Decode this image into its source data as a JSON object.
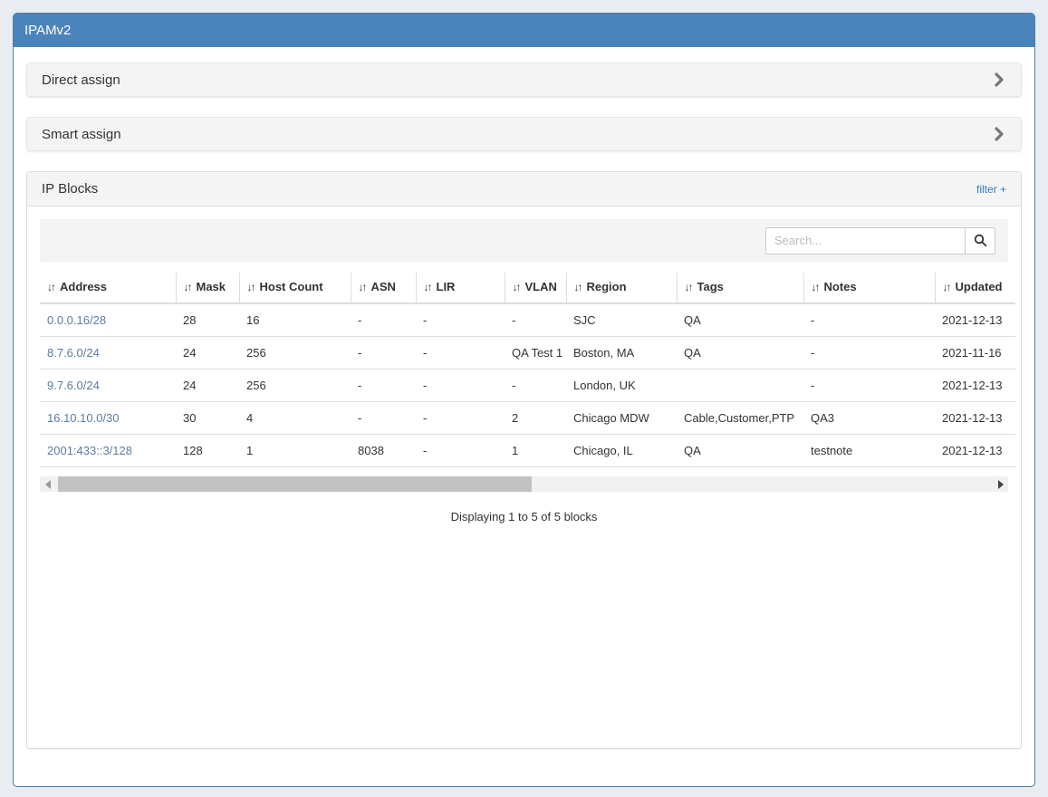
{
  "app": {
    "title": "IPAMv2"
  },
  "panels": {
    "direct_assign": {
      "title": "Direct assign"
    },
    "smart_assign": {
      "title": "Smart assign"
    },
    "ip_blocks": {
      "title": "IP Blocks",
      "filter_label": "filter +",
      "search": {
        "placeholder": "Search...",
        "value": ""
      },
      "table": {
        "sort_icon": "↓↑",
        "columns": [
          "Address",
          "Mask",
          "Host Count",
          "ASN",
          "LIR",
          "VLAN",
          "Region",
          "Tags",
          "Notes",
          "Updated"
        ],
        "rows": [
          [
            "0.0.0.16/28",
            "28",
            "16",
            "-",
            "-",
            "-",
            "SJC",
            "QA",
            "-",
            "2021-12-13"
          ],
          [
            "8.7.6.0/24",
            "24",
            "256",
            "-",
            "-",
            "QA Test 1",
            "Boston, MA",
            "QA",
            "-",
            "2021-11-16"
          ],
          [
            "9.7.6.0/24",
            "24",
            "256",
            "-",
            "-",
            "-",
            "London, UK",
            "",
            "-",
            "2021-12-13"
          ],
          [
            "16.10.10.0/30",
            "30",
            "4",
            "-",
            "-",
            "2",
            "Chicago MDW",
            "Cable,Customer,PTP",
            "QA3",
            "2021-12-13"
          ],
          [
            "2001:433::3/128",
            "128",
            "1",
            "8038",
            "-",
            "1",
            "Chicago, IL",
            "QA",
            "testnote",
            "2021-12-13"
          ]
        ]
      },
      "summary": "Displaying 1 to 5 of 5 blocks"
    }
  },
  "colors": {
    "header_blue": "#4a84bb",
    "container_border_blue": "#4d7ba8",
    "link_blue": "#337ab7",
    "address_link_blue": "#5b7da3",
    "panel_gray": "#f4f4f4",
    "page_background": "#e9edf2"
  }
}
